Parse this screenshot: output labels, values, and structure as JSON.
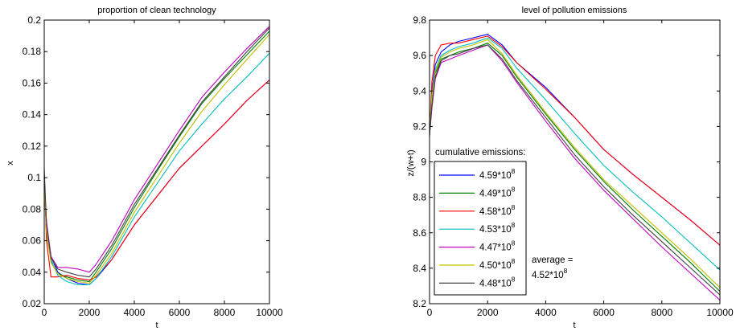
{
  "chart_data": [
    {
      "type": "line",
      "title": "proportion of clean technology",
      "xlabel": "t",
      "ylabel": "x",
      "xlim": [
        0,
        10000
      ],
      "ylim": [
        0.02,
        0.2
      ],
      "xticks": [
        "0",
        "2000",
        "4000",
        "6000",
        "8000",
        "10000"
      ],
      "yticks": [
        "0.02",
        "0.04",
        "0.06",
        "0.08",
        "0.1",
        "0.12",
        "0.14",
        "0.16",
        "0.18",
        "0.2"
      ],
      "grid": false,
      "series": [
        {
          "color": "#0000ff",
          "x": [
            0,
            100,
            300,
            600,
            1000,
            1500,
            2000,
            2300,
            3000,
            4000,
            5000,
            6000,
            7000,
            8000,
            9000,
            10000
          ],
          "y": [
            0.1,
            0.07,
            0.05,
            0.04,
            0.036,
            0.033,
            0.032,
            0.036,
            0.048,
            0.07,
            0.088,
            0.106,
            0.12,
            0.134,
            0.149,
            0.162
          ]
        },
        {
          "color": "#008000",
          "x": [
            0,
            100,
            300,
            600,
            1000,
            1500,
            2000,
            2300,
            3000,
            4000,
            5000,
            6000,
            7000,
            8000,
            9000,
            10000
          ],
          "y": [
            0.1,
            0.065,
            0.047,
            0.039,
            0.037,
            0.035,
            0.034,
            0.04,
            0.055,
            0.081,
            0.104,
            0.126,
            0.147,
            0.163,
            0.178,
            0.193
          ]
        },
        {
          "color": "#ff0000",
          "x": [
            0,
            100,
            300,
            600,
            1000,
            1500,
            2000,
            2300,
            3000,
            4000,
            5000,
            6000,
            7000,
            8000,
            9000,
            10000
          ],
          "y": [
            0.1,
            0.06,
            0.037,
            0.037,
            0.038,
            0.036,
            0.035,
            0.037,
            0.048,
            0.07,
            0.088,
            0.106,
            0.12,
            0.134,
            0.149,
            0.162
          ]
        },
        {
          "color": "#00bfbf",
          "x": [
            0,
            100,
            300,
            600,
            1000,
            1500,
            2000,
            2300,
            3000,
            4000,
            5000,
            6000,
            7000,
            8000,
            9000,
            10000
          ],
          "y": [
            0.1,
            0.068,
            0.048,
            0.038,
            0.034,
            0.032,
            0.032,
            0.036,
            0.05,
            0.075,
            0.096,
            0.117,
            0.134,
            0.15,
            0.164,
            0.179
          ]
        },
        {
          "color": "#bf00bf",
          "x": [
            0,
            100,
            300,
            600,
            1000,
            1500,
            2000,
            2300,
            3000,
            4000,
            5000,
            6000,
            7000,
            8000,
            9000,
            10000
          ],
          "y": [
            0.1,
            0.072,
            0.05,
            0.043,
            0.043,
            0.042,
            0.04,
            0.045,
            0.06,
            0.086,
            0.108,
            0.13,
            0.151,
            0.167,
            0.182,
            0.196
          ]
        },
        {
          "color": "#bfbf00",
          "x": [
            0,
            100,
            300,
            600,
            1000,
            1500,
            2000,
            2300,
            3000,
            4000,
            5000,
            6000,
            7000,
            8000,
            9000,
            10000
          ],
          "y": [
            0.1,
            0.066,
            0.046,
            0.039,
            0.036,
            0.034,
            0.033,
            0.038,
            0.052,
            0.078,
            0.1,
            0.122,
            0.142,
            0.159,
            0.175,
            0.191
          ]
        },
        {
          "color": "#404040",
          "x": [
            0,
            100,
            300,
            600,
            1000,
            1500,
            2000,
            2300,
            3000,
            4000,
            5000,
            6000,
            7000,
            8000,
            9000,
            10000
          ],
          "y": [
            0.106,
            0.07,
            0.049,
            0.042,
            0.04,
            0.038,
            0.037,
            0.042,
            0.057,
            0.083,
            0.105,
            0.127,
            0.148,
            0.164,
            0.18,
            0.195
          ]
        }
      ]
    },
    {
      "type": "line",
      "title": "level of pollution emissions",
      "xlabel": "t",
      "ylabel": "z/(w+t)",
      "xlim": [
        0,
        10000
      ],
      "ylim": [
        8.2,
        9.8
      ],
      "xticks": [
        "0",
        "2000",
        "4000",
        "6000",
        "8000",
        "10000"
      ],
      "yticks": [
        "8.2",
        "8.4",
        "8.6",
        "8.8",
        "9",
        "9.2",
        "9.4",
        "9.6",
        "9.8"
      ],
      "grid": false,
      "legend": {
        "title": "cumulative emissions:",
        "entries": [
          "4.59*10^8",
          "4.49*10^8",
          "4.58*10^8",
          "4.53*10^8",
          "4.47*10^8",
          "4.50*10^8",
          "4.48*10^8"
        ]
      },
      "annotation": {
        "line1": "average =",
        "line2": "4.52*10^8"
      },
      "series": [
        {
          "color": "#0000ff",
          "x": [
            0,
            80,
            200,
            400,
            700,
            1000,
            1500,
            2000,
            2500,
            3000,
            4000,
            5000,
            6000,
            7000,
            8000,
            9000,
            10000
          ],
          "y": [
            9.15,
            9.4,
            9.55,
            9.62,
            9.66,
            9.68,
            9.7,
            9.72,
            9.66,
            9.56,
            9.42,
            9.25,
            9.07,
            8.93,
            8.8,
            8.67,
            8.53
          ]
        },
        {
          "color": "#008000",
          "x": [
            0,
            80,
            200,
            400,
            700,
            1000,
            1500,
            2000,
            2500,
            3000,
            4000,
            5000,
            6000,
            7000,
            8000,
            9000,
            10000
          ],
          "y": [
            9.15,
            9.35,
            9.5,
            9.58,
            9.6,
            9.62,
            9.64,
            9.67,
            9.6,
            9.48,
            9.27,
            9.07,
            8.89,
            8.73,
            8.58,
            8.43,
            8.27
          ]
        },
        {
          "color": "#ff0000",
          "x": [
            0,
            80,
            200,
            400,
            700,
            1000,
            1500,
            2000,
            2500,
            3000,
            4000,
            5000,
            6000,
            7000,
            8000,
            9000,
            10000
          ],
          "y": [
            9.15,
            9.45,
            9.6,
            9.66,
            9.67,
            9.67,
            9.69,
            9.71,
            9.65,
            9.56,
            9.41,
            9.25,
            9.07,
            8.93,
            8.8,
            8.67,
            8.53
          ]
        },
        {
          "color": "#00bfbf",
          "x": [
            0,
            80,
            200,
            400,
            700,
            1000,
            1500,
            2000,
            2500,
            3000,
            4000,
            5000,
            6000,
            7000,
            8000,
            9000,
            10000
          ],
          "y": [
            9.15,
            9.38,
            9.52,
            9.6,
            9.63,
            9.65,
            9.67,
            9.7,
            9.64,
            9.53,
            9.35,
            9.16,
            8.98,
            8.83,
            8.69,
            8.54,
            8.39
          ]
        },
        {
          "color": "#bf00bf",
          "x": [
            0,
            80,
            200,
            400,
            700,
            1000,
            1500,
            2000,
            2500,
            3000,
            4000,
            5000,
            6000,
            7000,
            8000,
            9000,
            10000
          ],
          "y": [
            9.15,
            9.3,
            9.47,
            9.56,
            9.58,
            9.6,
            9.63,
            9.66,
            9.57,
            9.45,
            9.23,
            9.02,
            8.84,
            8.68,
            8.52,
            8.37,
            8.22
          ]
        },
        {
          "color": "#bfbf00",
          "x": [
            0,
            80,
            200,
            400,
            700,
            1000,
            1500,
            2000,
            2500,
            3000,
            4000,
            5000,
            6000,
            7000,
            8000,
            9000,
            10000
          ],
          "y": [
            9.15,
            9.36,
            9.51,
            9.59,
            9.62,
            9.64,
            9.66,
            9.69,
            9.61,
            9.49,
            9.28,
            9.08,
            8.9,
            8.75,
            8.6,
            8.45,
            8.29
          ]
        },
        {
          "color": "#404040",
          "x": [
            0,
            80,
            200,
            400,
            700,
            1000,
            1500,
            2000,
            2500,
            3000,
            4000,
            5000,
            6000,
            7000,
            8000,
            9000,
            10000
          ],
          "y": [
            9.15,
            9.32,
            9.48,
            9.57,
            9.6,
            9.61,
            9.64,
            9.66,
            9.58,
            9.46,
            9.25,
            9.04,
            8.86,
            8.7,
            8.55,
            8.4,
            8.25
          ]
        }
      ]
    }
  ]
}
